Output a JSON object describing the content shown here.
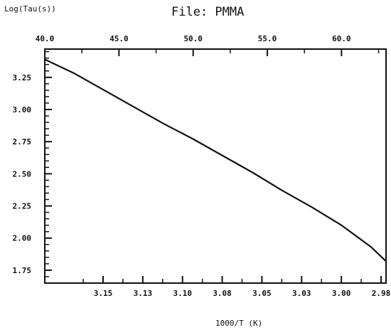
{
  "chart_data": {
    "type": "line",
    "title": "File:  PMMA",
    "ylabel": "Log(Tau(s))",
    "xlabel": "1000/T  (K)",
    "bottom_axis": {
      "label": "1000/T  (K)",
      "ticks": [
        "3.15",
        "3.13",
        "3.10",
        "3.08",
        "3.05",
        "3.03",
        "3.00",
        "2.98"
      ],
      "reversed": true
    },
    "top_axis": {
      "ticks": [
        "40.0",
        "45.0",
        "50.0",
        "55.0",
        "60.0"
      ],
      "xlim": [
        40.0,
        63.0
      ]
    },
    "y_axis": {
      "ticks": [
        "3.25",
        "3.00",
        "2.75",
        "2.50",
        "2.25",
        "2.00",
        "1.75"
      ],
      "ylim": [
        1.65,
        3.47
      ]
    },
    "series": [
      {
        "x": [
          40.0,
          42.0,
          44.0,
          46.0,
          48.0,
          50.0,
          52.0,
          54.0,
          56.0,
          58.0,
          60.0,
          62.0,
          63.0
        ],
        "values": [
          3.39,
          3.28,
          3.15,
          3.02,
          2.89,
          2.77,
          2.64,
          2.51,
          2.37,
          2.24,
          2.1,
          1.93,
          1.82
        ]
      }
    ],
    "grid": false,
    "color": "#111111"
  }
}
